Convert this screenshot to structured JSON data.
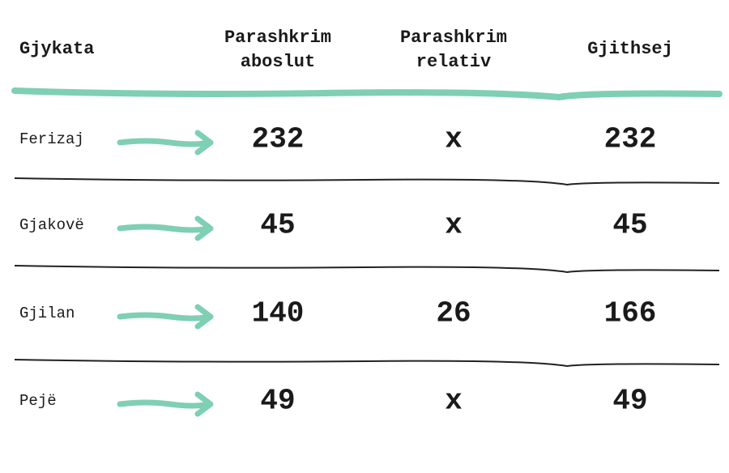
{
  "table": {
    "header": [
      "Gjykata",
      "Parashkrim aboslut",
      "Parashkrim relativ",
      "Gjithsej"
    ],
    "rows": [
      [
        "Ferizaj",
        232,
        "x",
        232
      ],
      [
        "Gjakovë",
        45,
        "x",
        45
      ],
      [
        "Gjilan",
        140,
        26,
        166
      ],
      [
        "Pejë",
        49,
        "x",
        49
      ]
    ]
  }
}
